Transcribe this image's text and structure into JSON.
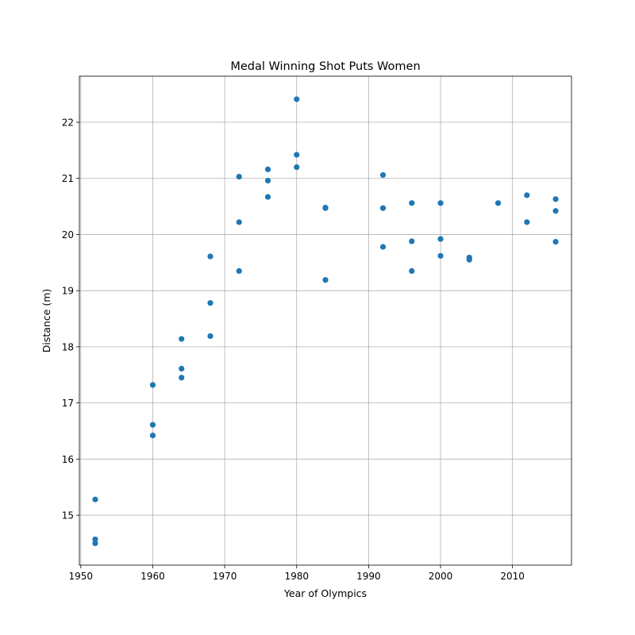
{
  "chart_data": {
    "type": "scatter",
    "title": "Medal Winning Shot Puts Women",
    "xlabel": "Year of Olympics",
    "ylabel": "Distance (m)",
    "xlim": [
      1949.8,
      2018.2
    ],
    "ylim": [
      14.11,
      22.82
    ],
    "xticks": [
      1950,
      1960,
      1970,
      1980,
      1990,
      2000,
      2010
    ],
    "yticks": [
      15,
      16,
      17,
      18,
      19,
      20,
      21,
      22
    ],
    "grid": true,
    "marker_color": "#1f77b4",
    "points": [
      {
        "x": 1952,
        "y": 15.28
      },
      {
        "x": 1952,
        "y": 14.57
      },
      {
        "x": 1952,
        "y": 14.5
      },
      {
        "x": 1960,
        "y": 17.32
      },
      {
        "x": 1960,
        "y": 16.61
      },
      {
        "x": 1960,
        "y": 16.42
      },
      {
        "x": 1964,
        "y": 18.14
      },
      {
        "x": 1964,
        "y": 17.61
      },
      {
        "x": 1964,
        "y": 17.45
      },
      {
        "x": 1968,
        "y": 19.61
      },
      {
        "x": 1968,
        "y": 18.78
      },
      {
        "x": 1968,
        "y": 18.19
      },
      {
        "x": 1972,
        "y": 21.03
      },
      {
        "x": 1972,
        "y": 20.22
      },
      {
        "x": 1972,
        "y": 19.35
      },
      {
        "x": 1976,
        "y": 21.16
      },
      {
        "x": 1976,
        "y": 20.96
      },
      {
        "x": 1976,
        "y": 20.67
      },
      {
        "x": 1980,
        "y": 22.41
      },
      {
        "x": 1980,
        "y": 21.42
      },
      {
        "x": 1980,
        "y": 21.2
      },
      {
        "x": 1984,
        "y": 20.48
      },
      {
        "x": 1984,
        "y": 20.47
      },
      {
        "x": 1984,
        "y": 19.19
      },
      {
        "x": 1992,
        "y": 21.06
      },
      {
        "x": 1992,
        "y": 20.47
      },
      {
        "x": 1992,
        "y": 19.78
      },
      {
        "x": 1996,
        "y": 20.56
      },
      {
        "x": 1996,
        "y": 19.88
      },
      {
        "x": 1996,
        "y": 19.35
      },
      {
        "x": 2000,
        "y": 20.56
      },
      {
        "x": 2000,
        "y": 19.92
      },
      {
        "x": 2000,
        "y": 19.62
      },
      {
        "x": 2004,
        "y": 19.59
      },
      {
        "x": 2004,
        "y": 19.55
      },
      {
        "x": 2008,
        "y": 20.56
      },
      {
        "x": 2012,
        "y": 20.7
      },
      {
        "x": 2012,
        "y": 20.22
      },
      {
        "x": 2016,
        "y": 20.63
      },
      {
        "x": 2016,
        "y": 20.42
      },
      {
        "x": 2016,
        "y": 19.87
      }
    ]
  }
}
